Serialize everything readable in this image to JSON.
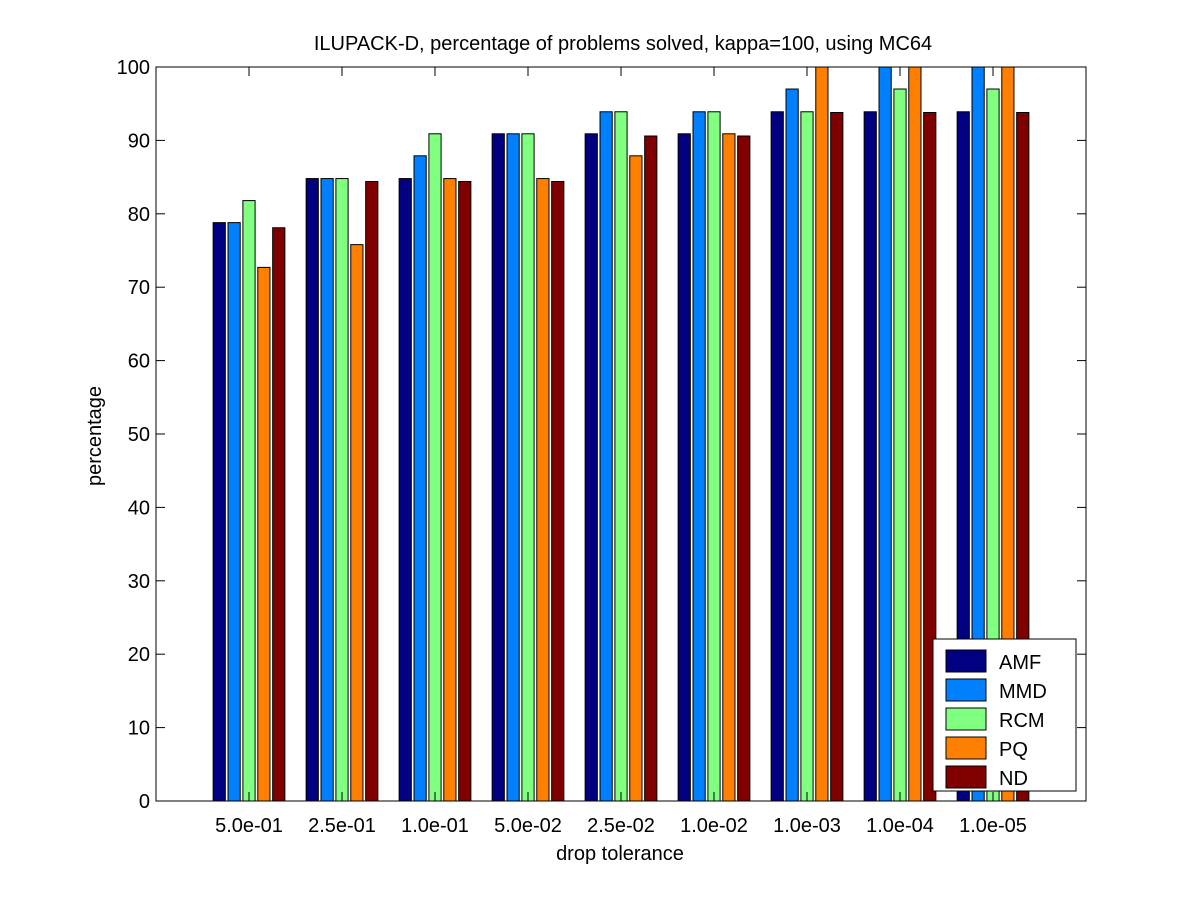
{
  "chart_data": {
    "type": "bar",
    "title": "ILUPACK-D, percentage of problems solved, kappa=100, using MC64",
    "xlabel": "drop tolerance",
    "ylabel": "percentage",
    "ylim": [
      0,
      100
    ],
    "yticks": [
      0,
      10,
      20,
      30,
      40,
      50,
      60,
      70,
      80,
      90,
      100
    ],
    "categories": [
      "5.0e-01",
      "2.5e-01",
      "1.0e-01",
      "5.0e-02",
      "2.5e-02",
      "1.0e-02",
      "1.0e-03",
      "1.0e-04",
      "1.0e-05"
    ],
    "series": [
      {
        "name": "AMF",
        "color": "#000080",
        "values": [
          78.8,
          84.8,
          84.8,
          90.9,
          90.9,
          90.9,
          93.9,
          93.9,
          93.9
        ]
      },
      {
        "name": "MMD",
        "color": "#0080ff",
        "values": [
          78.8,
          84.8,
          87.9,
          90.9,
          93.9,
          93.9,
          97.0,
          100,
          100
        ]
      },
      {
        "name": "RCM",
        "color": "#80ff80",
        "values": [
          81.8,
          84.8,
          90.9,
          90.9,
          93.9,
          93.9,
          93.9,
          97.0,
          97.0
        ]
      },
      {
        "name": "PQ",
        "color": "#ff8000",
        "values": [
          72.7,
          75.8,
          84.8,
          84.8,
          87.9,
          90.9,
          100,
          100,
          100
        ]
      },
      {
        "name": "ND",
        "color": "#800000",
        "values": [
          78.1,
          84.4,
          84.4,
          84.4,
          90.6,
          90.6,
          93.8,
          93.8,
          93.8
        ]
      }
    ],
    "legend_position": "bottom-right",
    "grid": false
  }
}
